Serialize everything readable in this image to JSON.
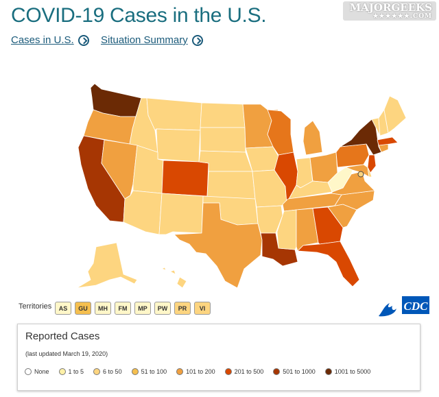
{
  "header": {
    "title": "COVID-19 Cases in the U.S.",
    "links": [
      {
        "label": "Cases in U.S."
      },
      {
        "label": "Situation Summary"
      }
    ]
  },
  "watermark": {
    "text": "MAJORGEEKS",
    "sub": "★★★★★★.COM"
  },
  "map": {
    "states": [
      {
        "id": "WA",
        "color": "#6b2a05"
      },
      {
        "id": "OR",
        "color": "#f0a040"
      },
      {
        "id": "CA",
        "color": "#a63603"
      },
      {
        "id": "ID",
        "color": "#fdd580"
      },
      {
        "id": "NV",
        "color": "#f0a040"
      },
      {
        "id": "MT",
        "color": "#fdd580"
      },
      {
        "id": "WY",
        "color": "#fdd580"
      },
      {
        "id": "UT",
        "color": "#fdd580"
      },
      {
        "id": "AZ",
        "color": "#fdd580"
      },
      {
        "id": "CO",
        "color": "#d94801"
      },
      {
        "id": "NM",
        "color": "#fdd580"
      },
      {
        "id": "ND",
        "color": "#fdd580"
      },
      {
        "id": "SD",
        "color": "#fdd580"
      },
      {
        "id": "NE",
        "color": "#fdd580"
      },
      {
        "id": "KS",
        "color": "#fdd580"
      },
      {
        "id": "OK",
        "color": "#fdd580"
      },
      {
        "id": "TX",
        "color": "#f0a040"
      },
      {
        "id": "MN",
        "color": "#f0a040"
      },
      {
        "id": "IA",
        "color": "#fdd580"
      },
      {
        "id": "MO",
        "color": "#fdd580"
      },
      {
        "id": "AR",
        "color": "#fdd580"
      },
      {
        "id": "LA",
        "color": "#a63603"
      },
      {
        "id": "WI",
        "color": "#e6761b"
      },
      {
        "id": "IL",
        "color": "#d94801"
      },
      {
        "id": "MI",
        "color": "#f0a040"
      },
      {
        "id": "IN",
        "color": "#fdd580"
      },
      {
        "id": "OH",
        "color": "#f0a040"
      },
      {
        "id": "KY",
        "color": "#fdd580"
      },
      {
        "id": "TN",
        "color": "#f0a040"
      },
      {
        "id": "MS",
        "color": "#fdd580"
      },
      {
        "id": "AL",
        "color": "#f0a040"
      },
      {
        "id": "GA",
        "color": "#d94801"
      },
      {
        "id": "FL",
        "color": "#d94801"
      },
      {
        "id": "SC",
        "color": "#f0a040"
      },
      {
        "id": "NC",
        "color": "#f0a040"
      },
      {
        "id": "VA",
        "color": "#f0a040"
      },
      {
        "id": "WV",
        "color": "#fff7c9"
      },
      {
        "id": "PA",
        "color": "#e6761b"
      },
      {
        "id": "NY",
        "color": "#6b2a05"
      },
      {
        "id": "NJ",
        "color": "#d94801"
      },
      {
        "id": "MD",
        "color": "#f0a040"
      },
      {
        "id": "DE",
        "color": "#fdd580"
      },
      {
        "id": "CT",
        "color": "#f0a040"
      },
      {
        "id": "MA",
        "color": "#d94801"
      },
      {
        "id": "VT",
        "color": "#fdd580"
      },
      {
        "id": "NH",
        "color": "#fdd580"
      },
      {
        "id": "ME",
        "color": "#fdd580"
      },
      {
        "id": "AK",
        "color": "#fdd580"
      },
      {
        "id": "HI",
        "color": "#fdd580"
      }
    ],
    "dc_color": "#fdd580"
  },
  "territories": {
    "label": "Territories",
    "items": [
      {
        "code": "AS",
        "color": "#fff7c9"
      },
      {
        "code": "GU",
        "color": "#f5bf4f"
      },
      {
        "code": "MH",
        "color": "#fff7c9"
      },
      {
        "code": "FM",
        "color": "#fff7c9"
      },
      {
        "code": "MP",
        "color": "#fff7c9"
      },
      {
        "code": "PW",
        "color": "#fff7c9"
      },
      {
        "code": "PR",
        "color": "#fdd580"
      },
      {
        "code": "VI",
        "color": "#fdd580"
      }
    ]
  },
  "logo": {
    "text": "CDC"
  },
  "legend": {
    "title": "Reported Cases",
    "updated": "(last updated March 19, 2020)",
    "items": [
      {
        "label": "None",
        "color": "#ffffff"
      },
      {
        "label": "1 to 5",
        "color": "#fff1a8"
      },
      {
        "label": "6 to 50",
        "color": "#fdd580"
      },
      {
        "label": "51 to 100",
        "color": "#f5bf4f"
      },
      {
        "label": "101 to 200",
        "color": "#f0a040"
      },
      {
        "label": "201 to 500",
        "color": "#d94801"
      },
      {
        "label": "501 to 1000",
        "color": "#a63603"
      },
      {
        "label": "1001 to 5000",
        "color": "#6b2a05"
      }
    ]
  }
}
